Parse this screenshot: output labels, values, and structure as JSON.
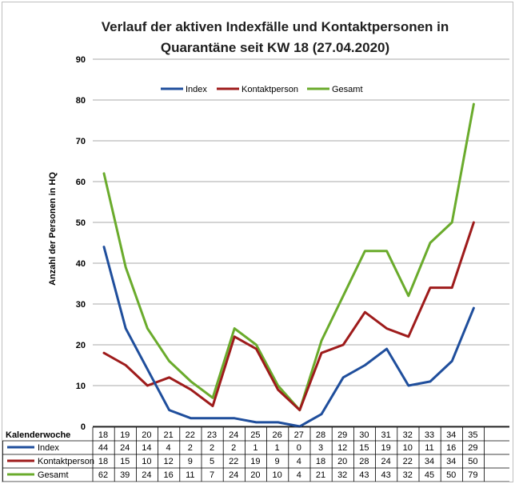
{
  "chart_data": {
    "type": "line",
    "title_line1": "Verlauf der aktiven Indexfälle und Kontaktpersonen in",
    "title_line2": "Quarantäne seit KW 18 (27.04.2020)",
    "ylabel": "Anzahl der Personen in HQ",
    "xlabel": "Kalenderwoche",
    "ylim": [
      0,
      90
    ],
    "yticks": [
      0,
      10,
      20,
      30,
      40,
      50,
      60,
      70,
      80,
      90
    ],
    "grid": true,
    "legend_position": "top",
    "categories": [
      "18",
      "19",
      "20",
      "21",
      "22",
      "23",
      "24",
      "25",
      "26",
      "27",
      "28",
      "29",
      "30",
      "31",
      "32",
      "33",
      "34",
      "35"
    ],
    "series": [
      {
        "name": "Index",
        "color": "#1f4e9c",
        "values": [
          44,
          24,
          14,
          4,
          2,
          2,
          2,
          1,
          1,
          0,
          3,
          12,
          15,
          19,
          10,
          11,
          16,
          29
        ]
      },
      {
        "name": "Kontaktperson",
        "color": "#9e1b1b",
        "values": [
          18,
          15,
          10,
          12,
          9,
          5,
          22,
          19,
          9,
          4,
          18,
          20,
          28,
          24,
          22,
          34,
          34,
          50
        ]
      },
      {
        "name": "Gesamt",
        "color": "#6aab2c",
        "values": [
          62,
          39,
          24,
          16,
          11,
          7,
          24,
          20,
          10,
          4,
          21,
          32,
          43,
          43,
          32,
          45,
          50,
          79
        ]
      }
    ]
  }
}
